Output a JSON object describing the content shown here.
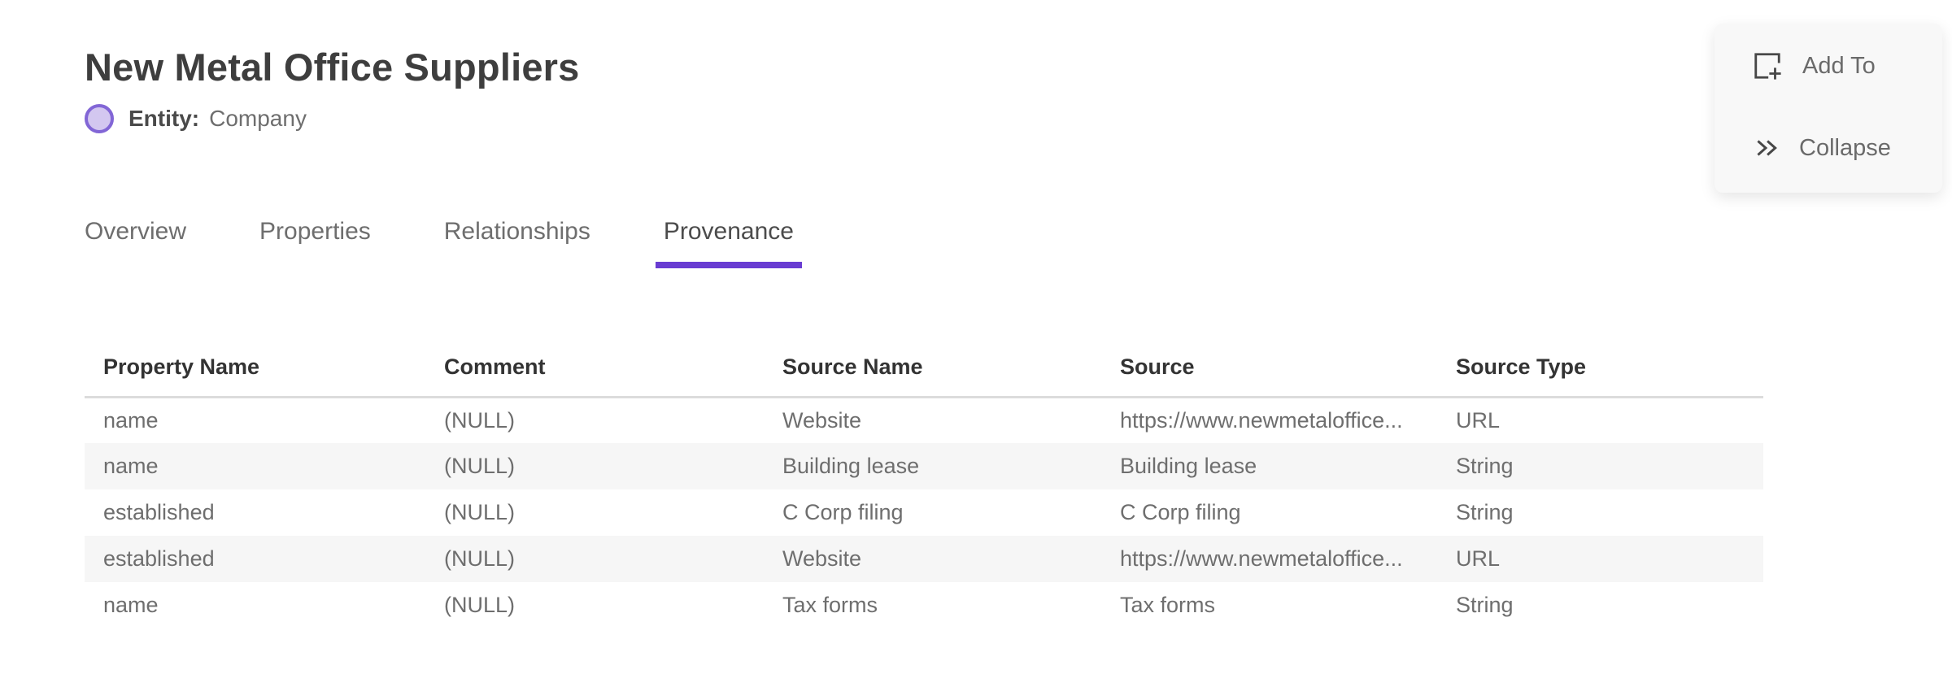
{
  "page": {
    "title": "New Metal Office Suppliers",
    "entity": {
      "label": "Entity:",
      "value": "Company"
    }
  },
  "actions": {
    "add_to_label": "Add To",
    "collapse_label": "Collapse"
  },
  "tabs": [
    {
      "label": "Overview",
      "active": false
    },
    {
      "label": "Properties",
      "active": false
    },
    {
      "label": "Relationships",
      "active": false
    },
    {
      "label": "Provenance",
      "active": true
    }
  ],
  "table": {
    "columns": [
      "Property Name",
      "Comment",
      "Source Name",
      "Source",
      "Source Type"
    ],
    "rows": [
      [
        "name",
        "(NULL)",
        "Website",
        "https://www.newmetaloffice...",
        "URL"
      ],
      [
        "name",
        "(NULL)",
        "Building lease",
        "Building lease",
        "String"
      ],
      [
        "established",
        "(NULL)",
        "C Corp filing",
        "C Corp filing",
        "String"
      ],
      [
        "established",
        "(NULL)",
        "Website",
        "https://www.newmetaloffice...",
        "URL"
      ],
      [
        "name",
        "(NULL)",
        "Tax forms",
        "Tax forms",
        "String"
      ]
    ]
  },
  "icons": {
    "entity": "entity-circle-icon",
    "add_to": "add-to-icon",
    "collapse": "double-chevron-right-icon"
  },
  "colors": {
    "accent_purple": "#693CD2",
    "entity_circle_fill": "#D3C7F0",
    "entity_circle_border": "#8266D6",
    "row_stripe": "#F6F6F6",
    "card_background": "#F8F8F8",
    "title_text": "#3E3E3E",
    "body_text": "#6E6E6E"
  }
}
